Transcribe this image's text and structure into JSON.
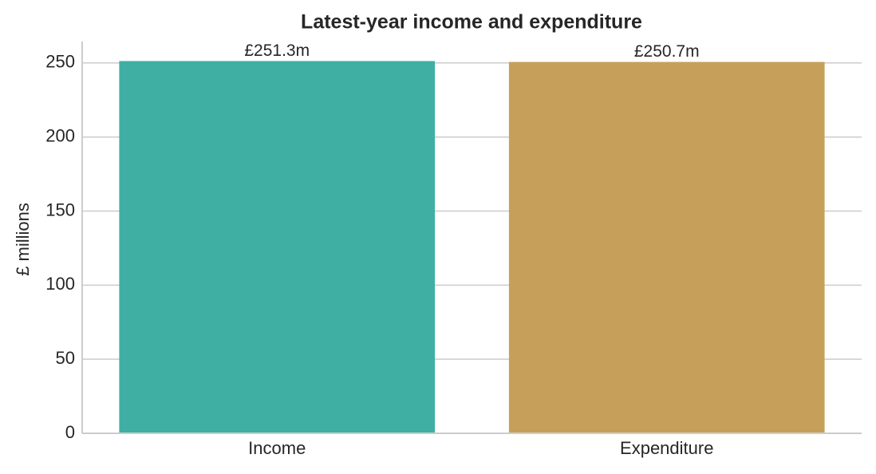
{
  "chart_data": {
    "type": "bar",
    "title": "Latest-year income and expenditure",
    "y_label": "£ millions",
    "categories": [
      "Income",
      "Expenditure"
    ],
    "values": [
      251.3,
      250.7
    ],
    "value_labels": [
      "£251.3m",
      "£250.7m"
    ],
    "colors": [
      "#3fafa3",
      "#c6a05a"
    ],
    "ylim": [
      0,
      264.5
    ],
    "yticks": [
      0,
      50,
      100,
      150,
      200,
      250
    ],
    "grid": true
  }
}
